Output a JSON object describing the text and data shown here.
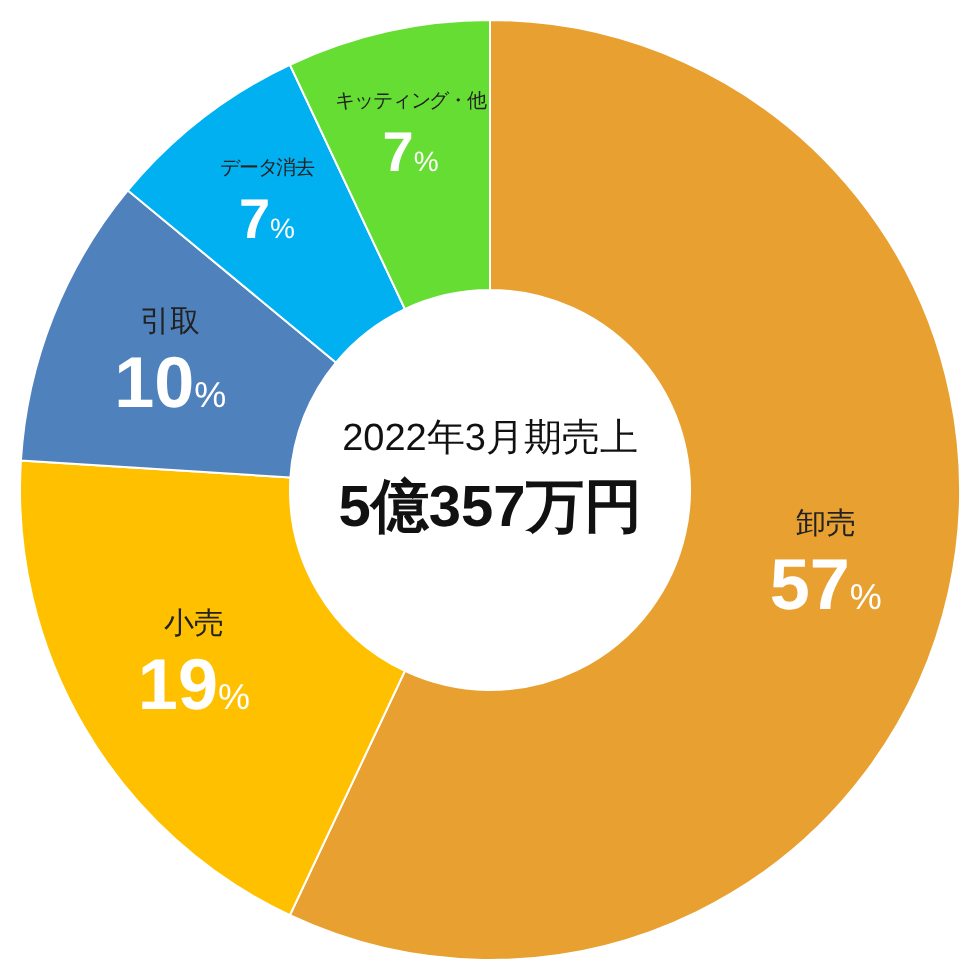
{
  "chart_data": {
    "type": "donut",
    "categories": [
      "卸売",
      "小売",
      "引取",
      "データ消去",
      "キッティング・他"
    ],
    "values": [
      57,
      19,
      10,
      7,
      7
    ],
    "colors": [
      "#e8a030",
      "#ffc000",
      "#4f81bd",
      "#00b0f0",
      "#66dd33"
    ],
    "value_labels": [
      "57%",
      "19%",
      "10%",
      "7%",
      "7%"
    ],
    "annotations": [
      "2022年3月期売上",
      "5億357万円"
    ]
  }
}
